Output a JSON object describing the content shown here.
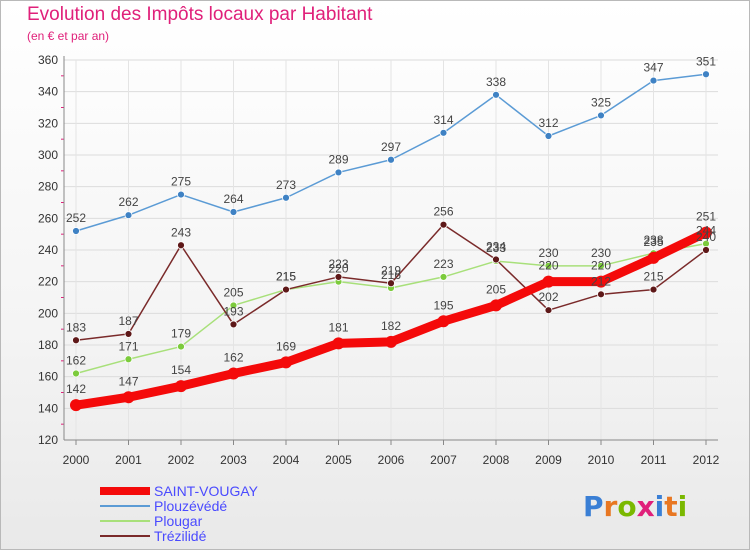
{
  "title": "Evolution des Impôts locaux par Habitant",
  "subtitle": "(en € et par an)",
  "logo": {
    "text": "Proxiti",
    "colors": [
      "#3a7fd5",
      "#e87722",
      "#7ab800",
      "#e0207a",
      "#3a7fd5",
      "#e87722",
      "#7ab800"
    ]
  },
  "chart_data": {
    "type": "line",
    "title": "Evolution des Impôts locaux par Habitant",
    "subtitle": "(en € et par an)",
    "xlabel": "",
    "ylabel": "",
    "categories": [
      "2000",
      "2001",
      "2002",
      "2003",
      "2004",
      "2005",
      "2006",
      "2007",
      "2008",
      "2009",
      "2010",
      "2011",
      "2012"
    ],
    "ylim": [
      120,
      360
    ],
    "yticks": [
      120,
      140,
      160,
      180,
      200,
      220,
      240,
      260,
      280,
      300,
      320,
      340,
      360
    ],
    "grid": true,
    "legend_position": "bottom-left",
    "series": [
      {
        "name": "Plouzévédé",
        "color": "#5b9bd5",
        "marker": "#3f82c4",
        "values": [
          252,
          262,
          275,
          264,
          273,
          289,
          297,
          314,
          338,
          312,
          325,
          347,
          351
        ]
      },
      {
        "name": "Plougar",
        "color": "#a8e07a",
        "marker": "#7ccb3c",
        "values": [
          162,
          171,
          179,
          205,
          215,
          220,
          216,
          223,
          233,
          230,
          230,
          238,
          244
        ]
      },
      {
        "name": "Trézilidé",
        "color": "#7a2a2a",
        "marker": "#5e1818",
        "values": [
          183,
          187,
          243,
          193,
          215,
          223,
          219,
          256,
          234,
          202,
          212,
          215,
          240
        ]
      },
      {
        "name": "SAINT-VOUGAY",
        "color": "#f40a0a",
        "marker": "#f40a0a",
        "values": [
          142,
          147,
          154,
          162,
          169,
          181,
          182,
          195,
          205,
          220,
          220,
          235,
          251
        ]
      }
    ],
    "legend_order": [
      "SAINT-VOUGAY",
      "Plouzévédé",
      "Plougar",
      "Trézilidé"
    ],
    "legend_text_color": "#4a4aff"
  }
}
